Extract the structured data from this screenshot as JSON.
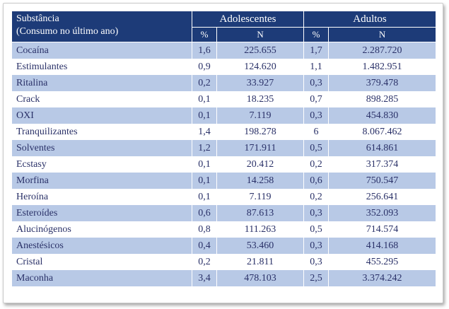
{
  "header": {
    "substance_line1": "Substância",
    "substance_line2": "(Consumo no último  ano)",
    "group_adolescents": "Adolescentes",
    "group_adults": "Adultos",
    "col_pct": "%",
    "col_n": "N"
  },
  "rows": [
    {
      "name": "Cocaína",
      "adol_pct": "1,6",
      "adol_n": "225.655",
      "adult_pct": "1,7",
      "adult_n": "2.287.720"
    },
    {
      "name": "Estimulantes",
      "adol_pct": "0,9",
      "adol_n": "124.620",
      "adult_pct": "1,1",
      "adult_n": "1.482.951"
    },
    {
      "name": "Ritalina",
      "adol_pct": "0,2",
      "adol_n": "33.927",
      "adult_pct": "0,3",
      "adult_n": "379.478"
    },
    {
      "name": "Crack",
      "adol_pct": "0,1",
      "adol_n": "18.235",
      "adult_pct": "0,7",
      "adult_n": "898.285"
    },
    {
      "name": "OXI",
      "adol_pct": "0,1",
      "adol_n": "7.119",
      "adult_pct": "0,3",
      "adult_n": "454.830"
    },
    {
      "name": "Tranquilizantes",
      "adol_pct": "1,4",
      "adol_n": "198.278",
      "adult_pct": "6",
      "adult_n": "8.067.462"
    },
    {
      "name": "Solventes",
      "adol_pct": "1,2",
      "adol_n": "171.911",
      "adult_pct": "0,5",
      "adult_n": "614.861"
    },
    {
      "name": "Ecstasy",
      "adol_pct": "0,1",
      "adol_n": "20.412",
      "adult_pct": "0,2",
      "adult_n": "317.374"
    },
    {
      "name": "Morfina",
      "adol_pct": "0,1",
      "adol_n": "14.258",
      "adult_pct": "0,6",
      "adult_n": "750.547"
    },
    {
      "name": "Heroína",
      "adol_pct": "0,1",
      "adol_n": "7.119",
      "adult_pct": "0,2",
      "adult_n": "256.641"
    },
    {
      "name": "Esteroídes",
      "adol_pct": "0,6",
      "adol_n": "87.613",
      "adult_pct": "0,3",
      "adult_n": "352.093"
    },
    {
      "name": "Alucinógenos",
      "adol_pct": "0,8",
      "adol_n": "111.263",
      "adult_pct": "0,5",
      "adult_n": "714.574"
    },
    {
      "name": "Anestésicos",
      "adol_pct": "0,4",
      "adol_n": "53.460",
      "adult_pct": "0,3",
      "adult_n": "414.168"
    },
    {
      "name": "Cristal",
      "adol_pct": "0,2",
      "adol_n": "21.811",
      "adult_pct": "0,3",
      "adult_n": "455.295"
    },
    {
      "name": "Maconha",
      "adol_pct": "3,4",
      "adol_n": "478.103",
      "adult_pct": "2,5",
      "adult_n": "3.374.242"
    }
  ],
  "colors": {
    "header_bg": "#1d3b78",
    "stripe_bg": "#b8c9e6",
    "text": "#2a3168"
  }
}
